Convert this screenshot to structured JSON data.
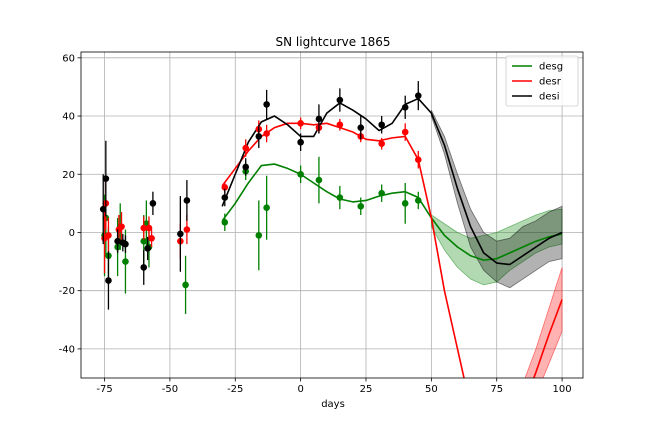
{
  "chart_data": {
    "type": "line",
    "title": "SN lightcurve 1865",
    "xlabel": "days",
    "ylabel": "",
    "xlim": [
      -84,
      108
    ],
    "ylim": [
      -50,
      62
    ],
    "xticks": [
      -75,
      -50,
      -25,
      0,
      25,
      50,
      75,
      100
    ],
    "yticks": [
      -40,
      -20,
      0,
      20,
      40,
      60
    ],
    "grid": true,
    "legend_position": "top-right",
    "colors": {
      "desg": "#008000",
      "desr": "#ff0000",
      "desi": "#000000"
    },
    "series": [
      {
        "name": "desg",
        "color": "#008000",
        "curve": {
          "x": [
            -30,
            -25,
            -20,
            -15,
            -10,
            -5,
            0,
            5,
            10,
            15,
            20,
            25,
            30,
            35,
            40,
            45,
            50,
            55,
            60,
            65,
            70,
            75,
            80,
            85,
            90,
            95,
            100
          ],
          "y": [
            4,
            10,
            17,
            23,
            23.5,
            22,
            20,
            17,
            14,
            11.5,
            10.5,
            11,
            12.5,
            13.5,
            14,
            12,
            5,
            -1,
            -5,
            -8,
            -9.5,
            -9,
            -7,
            -5,
            -3,
            -1.5,
            -0.5
          ],
          "lower": [
            null,
            null,
            null,
            null,
            null,
            null,
            null,
            null,
            null,
            null,
            null,
            null,
            null,
            null,
            null,
            null,
            2,
            -6,
            -12,
            -16,
            -18,
            -17,
            -13,
            -10,
            -7,
            -5,
            -4
          ],
          "upper": [
            null,
            null,
            null,
            null,
            null,
            null,
            null,
            null,
            null,
            null,
            null,
            null,
            null,
            null,
            null,
            null,
            6,
            3,
            0,
            -2,
            -1,
            0,
            2,
            4,
            6,
            7.5,
            8
          ]
        },
        "points": [
          {
            "x": -75,
            "y": -1,
            "err": 14
          },
          {
            "x": -74.5,
            "y": 5,
            "err": 13
          },
          {
            "x": -73.5,
            "y": -8,
            "err": 10
          },
          {
            "x": -70,
            "y": -5,
            "err": 10
          },
          {
            "x": -69,
            "y": 2,
            "err": 8
          },
          {
            "x": -67,
            "y": -10,
            "err": 11
          },
          {
            "x": -60,
            "y": -3,
            "err": 9
          },
          {
            "x": -59,
            "y": 3,
            "err": 8
          },
          {
            "x": -58,
            "y": -5,
            "err": 7
          },
          {
            "x": -44,
            "y": -18,
            "err": 10
          },
          {
            "x": -29,
            "y": 3.5,
            "err": 3
          },
          {
            "x": -21,
            "y": 21,
            "err": 3
          },
          {
            "x": -16,
            "y": -1,
            "err": 12
          },
          {
            "x": -13,
            "y": 8.5,
            "err": 11
          },
          {
            "x": 0,
            "y": 20,
            "err": 3
          },
          {
            "x": 7,
            "y": 18,
            "err": 8
          },
          {
            "x": 15,
            "y": 12,
            "err": 4
          },
          {
            "x": 23,
            "y": 9,
            "err": 3
          },
          {
            "x": 31,
            "y": 13.5,
            "err": 3
          },
          {
            "x": 40,
            "y": 10,
            "err": 7
          },
          {
            "x": 45,
            "y": 11,
            "err": 3
          }
        ]
      },
      {
        "name": "desr",
        "color": "#ff0000",
        "curve": {
          "x": [
            -30,
            -25,
            -20,
            -15,
            -10,
            -5,
            0,
            5,
            10,
            15,
            20,
            25,
            30,
            35,
            40,
            45,
            50,
            55,
            60,
            65
          ],
          "y": [
            16,
            22,
            28,
            33,
            36,
            37.5,
            37.5,
            37,
            37.5,
            36,
            34.5,
            32,
            31.5,
            32.5,
            33,
            25,
            5,
            -20,
            -40,
            -60
          ],
          "lower": [],
          "upper": []
        },
        "tail": {
          "x": [
            85,
            90,
            95,
            100
          ],
          "y": [
            -60,
            -48,
            -35,
            -23
          ],
          "lower": [
            -60,
            -56,
            -45,
            -34
          ],
          "upper": [
            -52,
            -40,
            -26,
            -12
          ]
        },
        "points": [
          {
            "x": -75,
            "y": -2,
            "err": 12
          },
          {
            "x": -74.5,
            "y": 10,
            "err": 9
          },
          {
            "x": -73.5,
            "y": -1,
            "err": 6
          },
          {
            "x": -69.5,
            "y": 1,
            "err": 5
          },
          {
            "x": -68.5,
            "y": 2,
            "err": 5
          },
          {
            "x": -60,
            "y": 1.5,
            "err": 4
          },
          {
            "x": -58,
            "y": 1.5,
            "err": 4
          },
          {
            "x": -57,
            "y": -2,
            "err": 3
          },
          {
            "x": -46,
            "y": -3,
            "err": 6
          },
          {
            "x": -43.5,
            "y": 1,
            "err": 5
          },
          {
            "x": -29,
            "y": 15.5,
            "err": 2
          },
          {
            "x": -21,
            "y": 29,
            "err": 3
          },
          {
            "x": -16,
            "y": 35.5,
            "err": 3
          },
          {
            "x": -13,
            "y": 34,
            "err": 3
          },
          {
            "x": 0,
            "y": 37.5,
            "err": 2
          },
          {
            "x": 7,
            "y": 36,
            "err": 2
          },
          {
            "x": 15,
            "y": 37,
            "err": 2
          },
          {
            "x": 23,
            "y": 33,
            "err": 2
          },
          {
            "x": 31,
            "y": 30.5,
            "err": 2
          },
          {
            "x": 40,
            "y": 34.5,
            "err": 3
          },
          {
            "x": 45,
            "y": 25,
            "err": 3
          }
        ]
      },
      {
        "name": "desi",
        "color": "#000000",
        "curve": {
          "x": [
            -30,
            -25,
            -20,
            -15,
            -10,
            -5,
            0,
            5,
            10,
            15,
            20,
            25,
            30,
            35,
            40,
            45,
            50,
            55,
            60,
            65,
            70,
            75,
            80,
            85,
            90,
            95,
            100
          ],
          "y": [
            9,
            20,
            31,
            38,
            40,
            37,
            33,
            33,
            41,
            44.5,
            42,
            39,
            35,
            37.5,
            44,
            46,
            41,
            30,
            15,
            2,
            -7,
            -10.5,
            -11,
            -8,
            -5,
            -2,
            0
          ],
          "lower": [
            null,
            null,
            null,
            null,
            null,
            null,
            null,
            null,
            null,
            null,
            null,
            null,
            null,
            null,
            null,
            null,
            40,
            27,
            10,
            -5,
            -13,
            -17,
            -19,
            -16,
            -13,
            -10,
            -9
          ],
          "upper": [
            null,
            null,
            null,
            null,
            null,
            null,
            null,
            null,
            null,
            null,
            null,
            null,
            null,
            null,
            null,
            null,
            42,
            33,
            20,
            8,
            0,
            -3,
            -2,
            2,
            4,
            7,
            9
          ]
        },
        "points": [
          {
            "x": -75.5,
            "y": 8,
            "err": 12
          },
          {
            "x": -74.5,
            "y": 18.5,
            "err": 13
          },
          {
            "x": -73.5,
            "y": -16.5,
            "err": 10
          },
          {
            "x": -70,
            "y": -3,
            "err": 4
          },
          {
            "x": -68,
            "y": -3.5,
            "err": 3
          },
          {
            "x": -67,
            "y": -4,
            "err": 3
          },
          {
            "x": -60,
            "y": -12,
            "err": 6
          },
          {
            "x": -58.5,
            "y": -5.5,
            "err": 4
          },
          {
            "x": -56.5,
            "y": 10,
            "err": 4
          },
          {
            "x": -46,
            "y": -0.5,
            "err": 13
          },
          {
            "x": -43.5,
            "y": 11,
            "err": 7
          },
          {
            "x": -29,
            "y": 12,
            "err": 3
          },
          {
            "x": -21,
            "y": 22.5,
            "err": 3
          },
          {
            "x": -16,
            "y": 33,
            "err": 4
          },
          {
            "x": -13,
            "y": 44,
            "err": 5
          },
          {
            "x": 0,
            "y": 31,
            "err": 3
          },
          {
            "x": 7,
            "y": 39,
            "err": 5
          },
          {
            "x": 15,
            "y": 45.5,
            "err": 4
          },
          {
            "x": 23,
            "y": 36,
            "err": 4
          },
          {
            "x": 31,
            "y": 37,
            "err": 3
          },
          {
            "x": 40,
            "y": 43,
            "err": 4
          },
          {
            "x": 45,
            "y": 47,
            "err": 5
          }
        ]
      }
    ]
  }
}
